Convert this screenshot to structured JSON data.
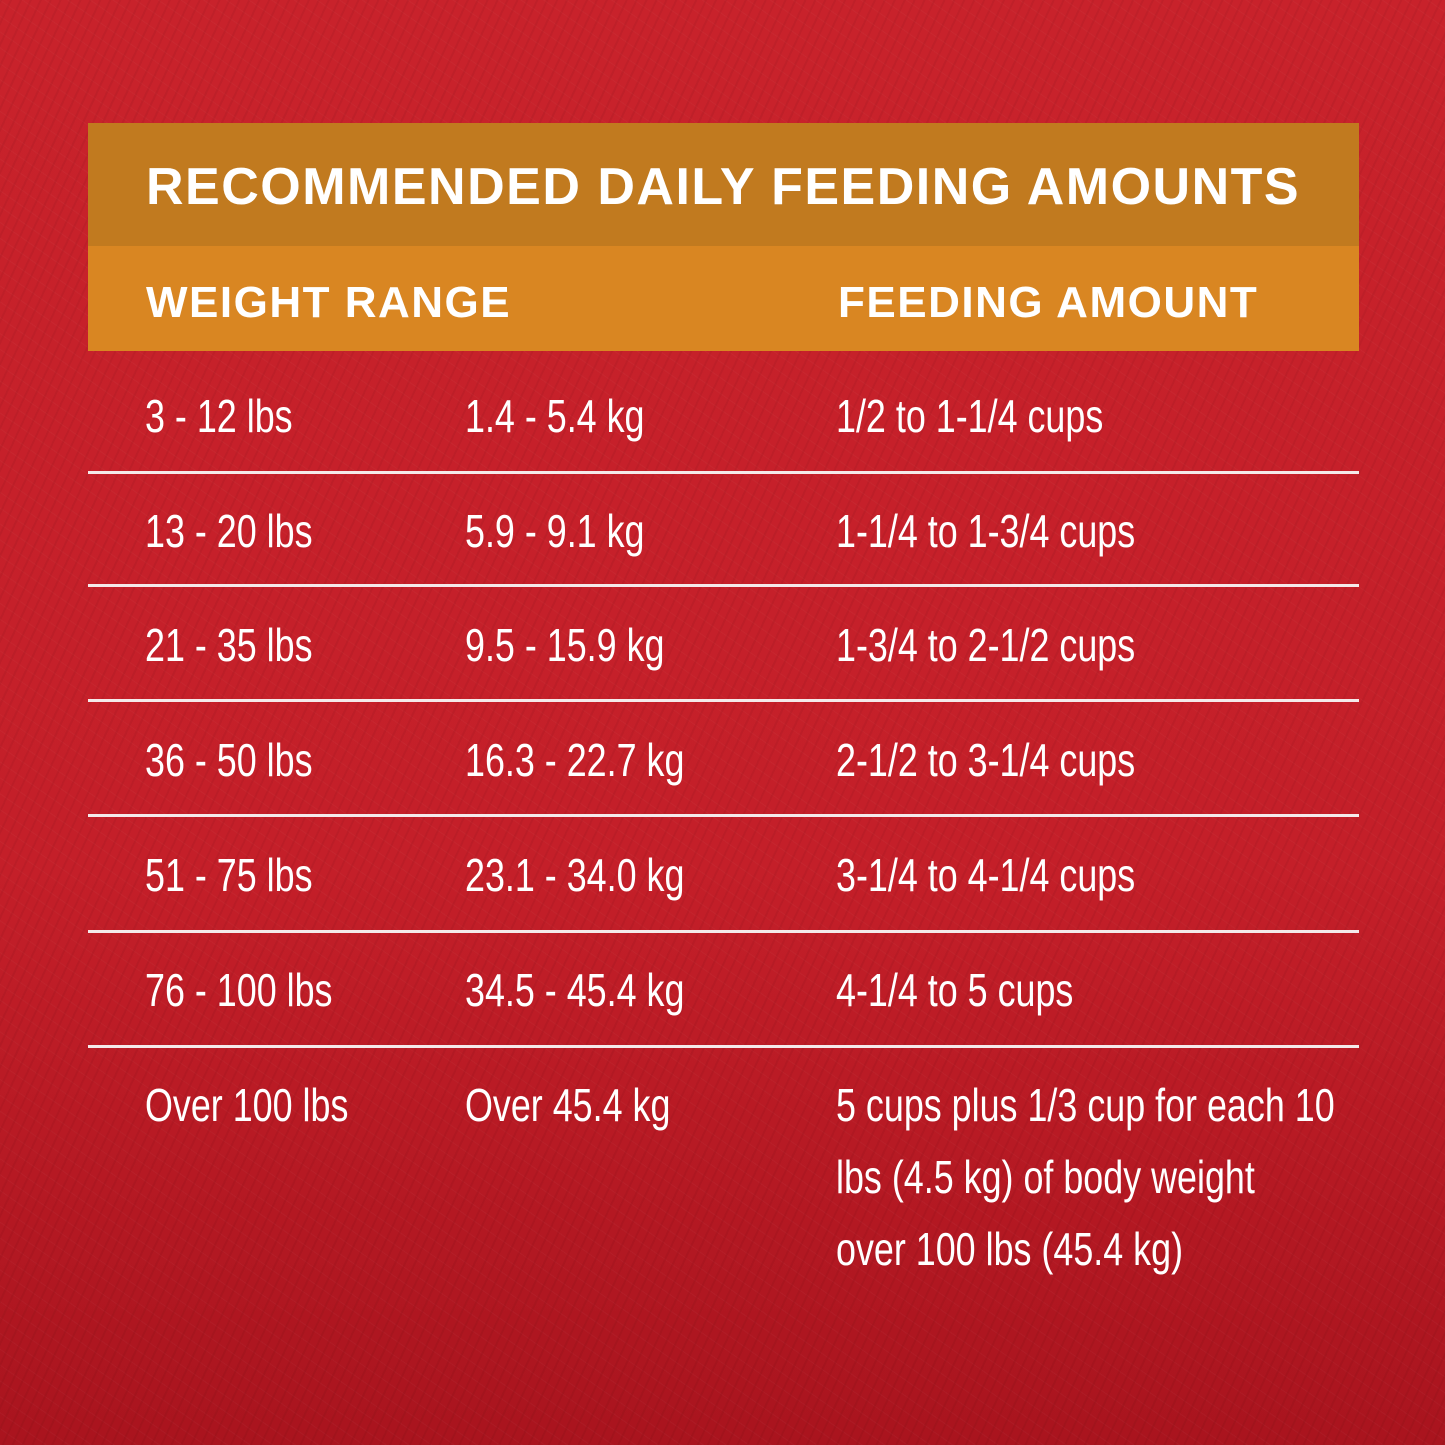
{
  "title": "RECOMMENDED DAILY FEEDING AMOUNTS",
  "headers": {
    "weight_range": "WEIGHT RANGE",
    "feeding_amount": "FEEDING AMOUNT"
  },
  "colors": {
    "background": "#c8222b",
    "title_band": "#c17a1f",
    "header_band": "#d98622",
    "text": "#ffffff"
  },
  "rows": [
    {
      "lbs": "3 - 12 lbs",
      "kg": "1.4 - 5.4 kg",
      "amount": "1/2 to 1-1/4 cups"
    },
    {
      "lbs": "13 - 20 lbs",
      "kg": "5.9 - 9.1 kg",
      "amount": "1-1/4 to 1-3/4 cups"
    },
    {
      "lbs": "21 - 35 lbs",
      "kg": "9.5 - 15.9 kg",
      "amount": "1-3/4 to 2-1/2 cups"
    },
    {
      "lbs": "36 - 50 lbs",
      "kg": "16.3 - 22.7 kg",
      "amount": "2-1/2 to 3-1/4 cups"
    },
    {
      "lbs": "51 - 75 lbs",
      "kg": "23.1 - 34.0 kg",
      "amount": "3-1/4 to 4-1/4 cups"
    },
    {
      "lbs": "76 - 100 lbs",
      "kg": "34.5 - 45.4 kg",
      "amount": "4-1/4 to 5 cups"
    },
    {
      "lbs": "Over 100 lbs",
      "kg": "Over 45.4 kg",
      "amount_lines": [
        "5 cups plus 1/3 cup for each 10",
        "lbs (4.5 kg) of body weight",
        "over 100 lbs (45.4 kg)"
      ]
    }
  ]
}
